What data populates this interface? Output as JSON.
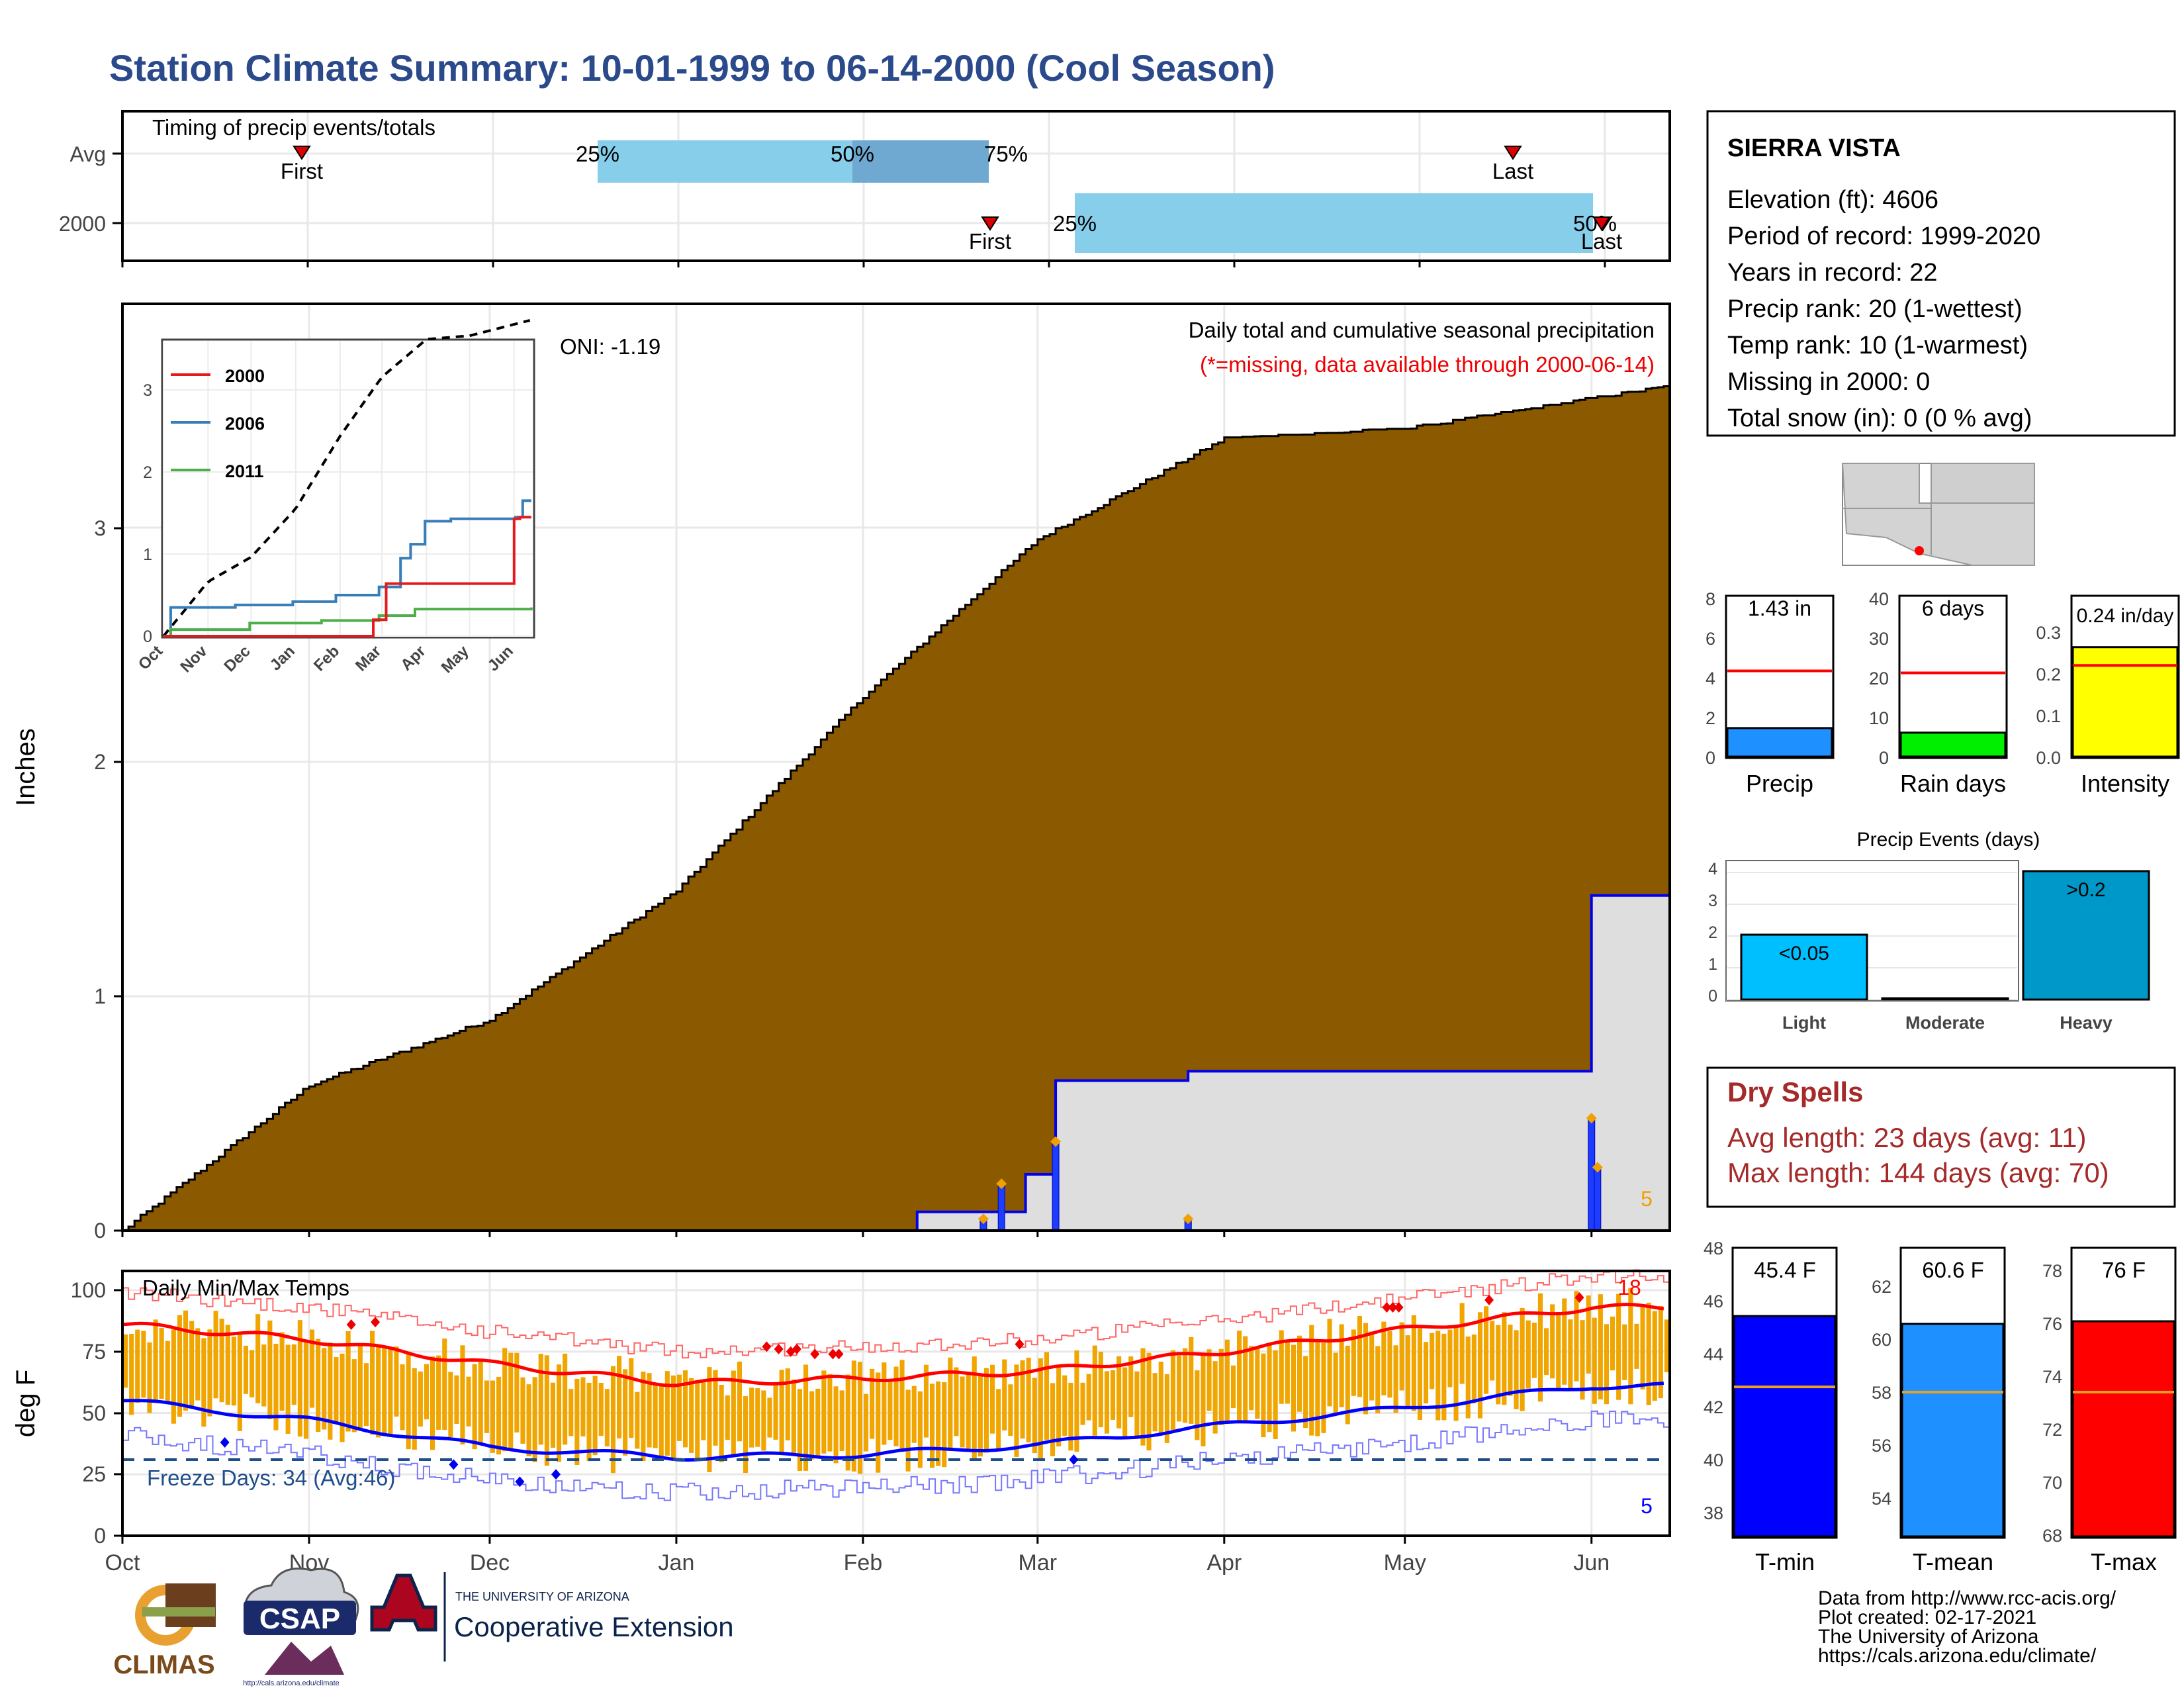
{
  "title": "Station Climate Summary: 10-01-1999 to 06-14-2000 (Cool Season)",
  "colors": {
    "title": "#2b4a8b",
    "precip_fill": "#8b5a00",
    "blue_line": "#0000ee",
    "quartile_light": "#87ceeb",
    "quartile_dark": "#6fa8d0",
    "tmax": "#ff0000",
    "tmin": "#0000ff",
    "tbar": "#f0a500",
    "dry_spell": "#a52a2a"
  },
  "timing": {
    "title": "Timing of precip events/totals",
    "rows": [
      "Avg",
      "2000"
    ],
    "avg": {
      "first_label": "First",
      "last_label": "Last",
      "q25": "25%",
      "q50": "50%",
      "q75": "75%"
    },
    "y2000": {
      "first_label": "First",
      "last_label": "Last",
      "q25": "25%",
      "q50q75": "50%"
    }
  },
  "main": {
    "ylabel": "Inches",
    "yticks": [
      "0",
      "1",
      "2",
      "3"
    ],
    "title": "Daily total and cumulative seasonal precipitation",
    "subtitle": "(*=missing, data available through 2000-06-14)",
    "oni": "ONI: -1.19",
    "count_label": "5"
  },
  "inset": {
    "yticks": [
      "0",
      "1",
      "2",
      "3"
    ],
    "xticks": [
      "Oct",
      "Nov",
      "Dec",
      "Jan",
      "Feb",
      "Mar",
      "Apr",
      "May",
      "Jun"
    ],
    "legend": [
      {
        "name": "2000",
        "color": "#e41a1c"
      },
      {
        "name": "2006",
        "color": "#377eb8"
      },
      {
        "name": "2011",
        "color": "#4daf4a"
      }
    ]
  },
  "temps": {
    "title": "Daily Min/Max Temps",
    "ylabel": "deg F",
    "yticks": [
      "0",
      "25",
      "50",
      "75",
      "100"
    ],
    "freeze_label": "Freeze Days: 34 (Avg:46)",
    "hot_count": "18",
    "cold_count": "5",
    "xticks": [
      "Oct",
      "Nov",
      "Dec",
      "Jan",
      "Feb",
      "Mar",
      "Apr",
      "May",
      "Jun"
    ]
  },
  "station": {
    "name": "SIERRA VISTA",
    "lines": [
      "Elevation (ft): 4606",
      "Period of record: 1999-2020",
      "Years in record: 22",
      "Precip rank: 20 (1-wettest)",
      "Temp rank: 10 (1-warmest)",
      "Missing in 2000: 0",
      "Total snow (in): 0 (0 % avg)"
    ]
  },
  "mini_bars": [
    {
      "label": "Precip",
      "value_label": "1.43 in",
      "value": 1.43,
      "avg": 4.3,
      "yticks": [
        "0",
        "2",
        "4",
        "6",
        "8"
      ],
      "ymax": 8,
      "color": "#1e90ff"
    },
    {
      "label": "Rain days",
      "value_label": "6 days",
      "value": 6,
      "avg": 21,
      "yticks": [
        "0",
        "10",
        "20",
        "30",
        "40"
      ],
      "ymax": 40,
      "color": "#00ee00"
    },
    {
      "label": "Intensity",
      "value_label": "0.24 in/day",
      "value": 0.24,
      "avg": 0.2,
      "yticks": [
        "0.0",
        "0.1",
        "0.2",
        "0.3"
      ],
      "ymax": 0.35,
      "color": "#ffff00"
    }
  ],
  "precip_events": {
    "title": "Precip Events (days)",
    "yticks": [
      "0",
      "1",
      "2",
      "3",
      "4"
    ],
    "bars": [
      {
        "category": "Light",
        "label": "<0.05",
        "value": 2
      },
      {
        "category": "Moderate",
        "label": "",
        "value": 0
      },
      {
        "category": "Heavy",
        "label": ">0.2",
        "value": 4
      }
    ]
  },
  "dry_spells": {
    "title": "Dry Spells",
    "avg_length": "Avg length: 23 days (avg: 11)",
    "max_length": "Max length: 144 days (avg: 70)"
  },
  "temp_bars": [
    {
      "label": "T-min",
      "value_label": "45.4 F",
      "value": 45.4,
      "avg": 42.7,
      "ymin": 37,
      "ymax": 48,
      "yticks": [
        "38",
        "40",
        "42",
        "44",
        "46",
        "48"
      ],
      "color": "#0000ff"
    },
    {
      "label": "T-mean",
      "value_label": "60.6 F",
      "value": 60.6,
      "avg": 58,
      "ymin": 52.5,
      "ymax": 63.5,
      "yticks": [
        "54",
        "56",
        "58",
        "60",
        "62"
      ],
      "color": "#1e90ff"
    },
    {
      "label": "T-max",
      "value_label": "76 F",
      "value": 76,
      "avg": 73.3,
      "ymin": 67.8,
      "ymax": 78.8,
      "yticks": [
        "68",
        "70",
        "72",
        "74",
        "76",
        "78"
      ],
      "color": "#ff0000"
    }
  ],
  "footer": {
    "lines": [
      "Data from http://www.rcc-acis.org/",
      "Plot created: 02-17-2021",
      "The University of Arizona",
      "https://cals.arizona.edu/climate/"
    ],
    "logos": {
      "climas": "CLIMAS",
      "csap": "CSAP",
      "csap_url": "http://cals.arizona.edu/climate",
      "ua_small": "THE UNIVERSITY OF ARIZONA",
      "ua_big": "Cooperative Extension"
    }
  },
  "chart_data": [
    {
      "type": "area",
      "title": "Daily total and cumulative seasonal precipitation",
      "ylabel": "Inches",
      "x": [
        "1999-10-01",
        "1999-11-01",
        "1999-12-01",
        "2000-01-01",
        "2000-02-01",
        "2000-03-01",
        "2000-04-01",
        "2000-05-01",
        "2000-06-01",
        "2000-06-14"
      ],
      "series": [
        {
          "name": "",
          "values": [
            0.0,
            0.62,
            0.9,
            1.45,
            2.28,
            2.95,
            3.38,
            3.42,
            3.55,
            3.6
          ]
        },
        {
          "name": "",
          "values": [
            0,
            0,
            0,
            0,
            0,
            0.24,
            0.68,
            0.68,
            1.43,
            1.43
          ]
        }
      ],
      "ylim": [
        0,
        3.95
      ]
    },
    {
      "type": "line",
      "title": "Daily Min/Max Temps",
      "ylabel": "deg F",
      "x": [
        "Oct",
        "Nov",
        "Dec",
        "Jan",
        "Feb",
        "Mar",
        "Apr",
        "May",
        "Jun"
      ],
      "series": [
        {
          "name": "",
          "values": [
            86,
            80,
            70,
            62,
            64,
            67,
            75,
            84,
            93
          ]
        },
        {
          "name": "",
          "values": [
            55,
            47,
            36,
            32,
            33,
            37,
            45,
            52,
            61
          ]
        }
      ],
      "ylim": [
        0,
        108
      ]
    }
  ]
}
